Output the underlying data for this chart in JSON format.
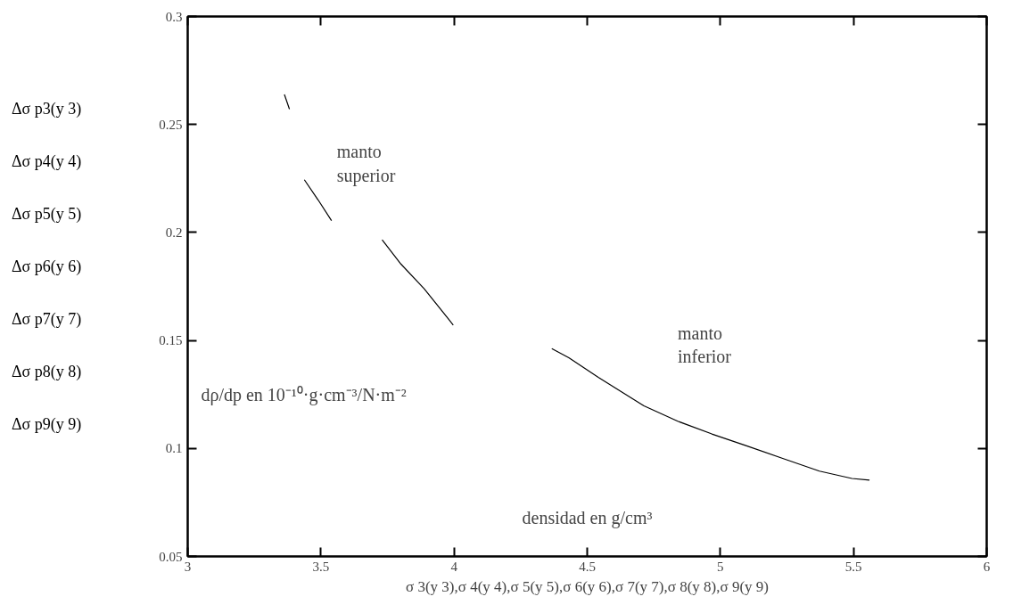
{
  "chart_data": {
    "type": "line",
    "xlabel": "σ 3(y 3),σ 4(y 4),σ 5(y 5),σ 6(y 6),σ 7(y 7),σ 8(y 8),σ 9(y 9)",
    "ylabel": "Δσ p3(y 3)\nΔσ p4(y 4)\nΔσ p5(y 5)\nΔσ p6(y 6)\nΔσ p7(y 7)\nΔσ p8(y 8)\nΔσ p9(y 9)",
    "x": [
      3.363,
      3.382,
      3.41,
      3.438,
      3.49,
      3.54,
      3.64,
      3.73,
      3.801,
      3.888,
      3.978,
      3.997,
      4.2,
      4.367,
      4.431,
      4.543,
      4.713,
      4.84,
      4.968,
      5.096,
      5.234,
      5.372,
      5.494,
      5.56
    ],
    "series": [
      {
        "color": "#000000",
        "values": [
          0.2639,
          0.2571,
          null,
          0.2244,
          0.215,
          0.2055,
          null,
          0.1966,
          0.1853,
          0.1739,
          0.1601,
          0.1571,
          null,
          0.1462,
          0.142,
          0.1328,
          0.1197,
          0.1126,
          0.1067,
          0.1013,
          0.0954,
          0.0895,
          0.0861,
          0.0853
        ]
      }
    ],
    "annotations": [
      "manto\nsuperior",
      "manto\ninferior",
      "densidad en g/cm³",
      "dρ/dp  en  10⁻¹⁰·g·cm⁻³/N·m⁻²"
    ],
    "xlim": [
      3,
      6
    ],
    "ylim": [
      0.05,
      0.3
    ],
    "xticks": [
      3,
      3.5,
      4,
      4.5,
      5,
      5.5,
      6
    ],
    "yticks": [
      0.05,
      0.1,
      0.15,
      0.2,
      0.25,
      0.3
    ],
    "grid": false,
    "marker": "none",
    "line_style": "solid"
  }
}
